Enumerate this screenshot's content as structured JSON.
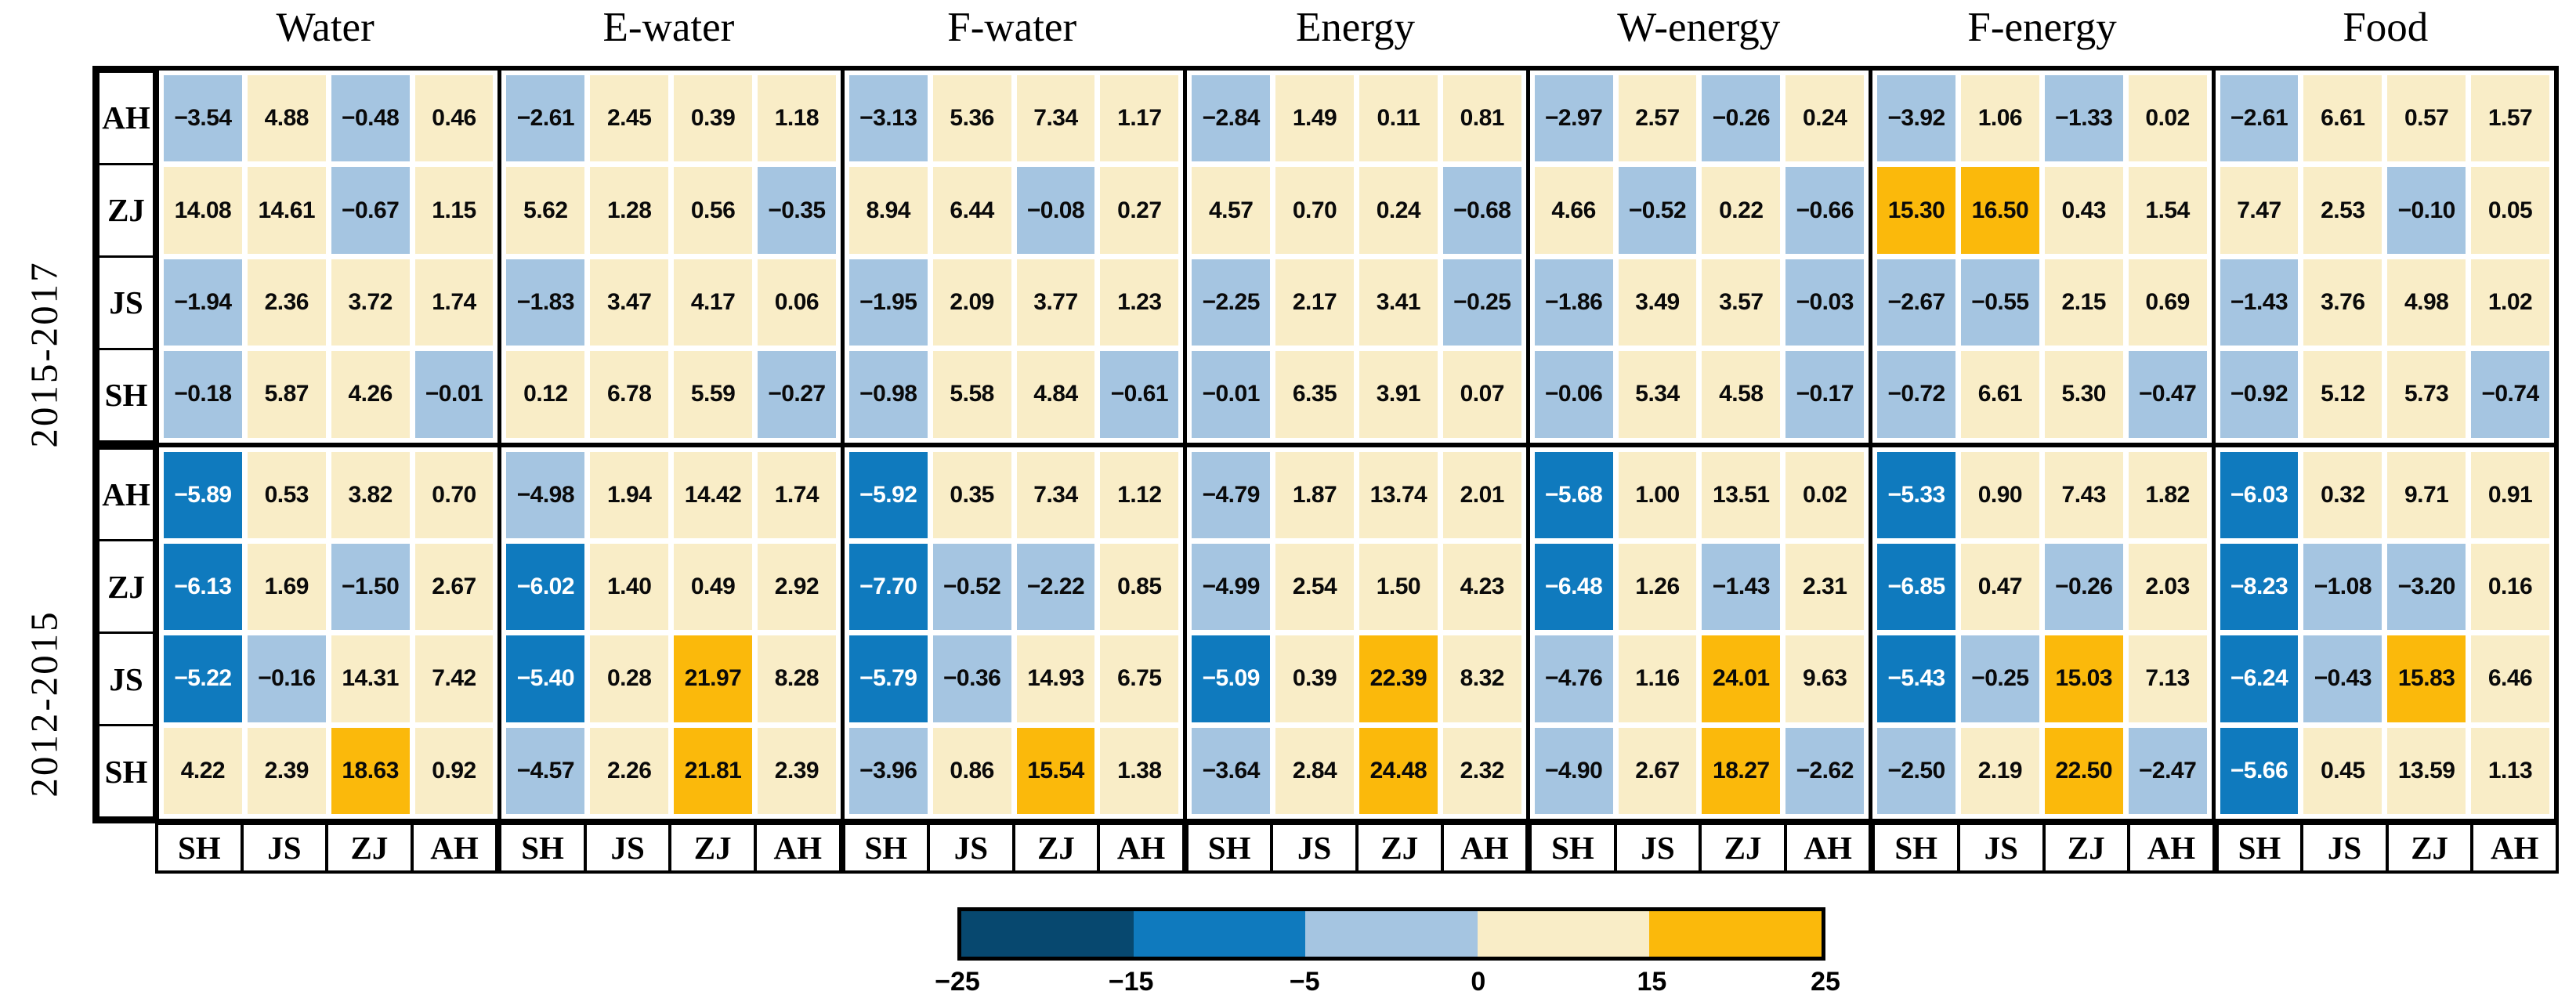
{
  "chart_data": {
    "type": "heatmap",
    "col_groups": [
      "Water",
      "E-water",
      "F-water",
      "Energy",
      "W-energy",
      "F-energy",
      "Food"
    ],
    "x_labels": [
      "SH",
      "JS",
      "ZJ",
      "AH"
    ],
    "row_blocks": [
      {
        "period": "2015-2017",
        "row_labels": [
          "AH",
          "ZJ",
          "JS",
          "SH"
        ],
        "values": {
          "Water": [
            [
              -3.54,
              4.88,
              -0.48,
              0.46
            ],
            [
              14.08,
              14.61,
              -0.67,
              1.15
            ],
            [
              -1.94,
              2.36,
              3.72,
              1.74
            ],
            [
              -0.18,
              5.87,
              4.26,
              -0.01
            ]
          ],
          "E-water": [
            [
              -2.61,
              2.45,
              0.39,
              1.18
            ],
            [
              5.62,
              1.28,
              0.56,
              -0.35
            ],
            [
              -1.83,
              3.47,
              4.17,
              0.06
            ],
            [
              0.12,
              6.78,
              5.59,
              -0.27
            ]
          ],
          "F-water": [
            [
              -3.13,
              5.36,
              7.34,
              1.17
            ],
            [
              8.94,
              6.44,
              -0.08,
              0.27
            ],
            [
              -1.95,
              2.09,
              3.77,
              1.23
            ],
            [
              -0.98,
              5.58,
              4.84,
              -0.61
            ]
          ],
          "Energy": [
            [
              -2.84,
              1.49,
              0.11,
              0.81
            ],
            [
              4.57,
              0.7,
              0.24,
              -0.68
            ],
            [
              -2.25,
              2.17,
              3.41,
              -0.25
            ],
            [
              -0.01,
              6.35,
              3.91,
              0.07
            ]
          ],
          "W-energy": [
            [
              -2.97,
              2.57,
              -0.26,
              0.24
            ],
            [
              4.66,
              -0.52,
              0.22,
              -0.66
            ],
            [
              -1.86,
              3.49,
              3.57,
              -0.03
            ],
            [
              -0.06,
              5.34,
              4.58,
              -0.17
            ]
          ],
          "F-energy": [
            [
              -3.92,
              1.06,
              -1.33,
              0.02
            ],
            [
              15.3,
              16.5,
              0.43,
              1.54
            ],
            [
              -2.67,
              -0.55,
              2.15,
              0.69
            ],
            [
              -0.72,
              6.61,
              5.3,
              -0.47
            ]
          ],
          "Food": [
            [
              -2.61,
              6.61,
              0.57,
              1.57
            ],
            [
              7.47,
              2.53,
              -0.1,
              0.05
            ],
            [
              -1.43,
              3.76,
              4.98,
              1.02
            ],
            [
              -0.92,
              5.12,
              5.73,
              -0.74
            ]
          ]
        }
      },
      {
        "period": "2012-2015",
        "row_labels": [
          "AH",
          "ZJ",
          "JS",
          "SH"
        ],
        "values": {
          "Water": [
            [
              -5.89,
              0.53,
              3.82,
              0.7
            ],
            [
              -6.13,
              1.69,
              -1.5,
              2.67
            ],
            [
              -5.22,
              -0.16,
              14.31,
              7.42
            ],
            [
              4.22,
              2.39,
              18.63,
              0.92
            ]
          ],
          "E-water": [
            [
              -4.98,
              1.94,
              14.42,
              1.74
            ],
            [
              -6.02,
              1.4,
              0.49,
              2.92
            ],
            [
              -5.4,
              0.28,
              21.97,
              8.28
            ],
            [
              -4.57,
              2.26,
              21.81,
              2.39
            ]
          ],
          "F-water": [
            [
              -5.92,
              0.35,
              7.34,
              1.12
            ],
            [
              -7.7,
              -0.52,
              -2.22,
              0.85
            ],
            [
              -5.79,
              -0.36,
              14.93,
              6.75
            ],
            [
              -3.96,
              0.86,
              15.54,
              1.38
            ]
          ],
          "Energy": [
            [
              -4.79,
              1.87,
              13.74,
              2.01
            ],
            [
              -4.99,
              2.54,
              1.5,
              4.23
            ],
            [
              -5.09,
              0.39,
              22.39,
              8.32
            ],
            [
              -3.64,
              2.84,
              24.48,
              2.32
            ]
          ],
          "W-energy": [
            [
              -5.68,
              1.0,
              13.51,
              0.02
            ],
            [
              -6.48,
              1.26,
              -1.43,
              2.31
            ],
            [
              -4.76,
              1.16,
              24.01,
              9.63
            ],
            [
              -4.9,
              2.67,
              18.27,
              -2.62
            ]
          ],
          "F-energy": [
            [
              -5.33,
              0.9,
              7.43,
              1.82
            ],
            [
              -6.85,
              0.47,
              -0.26,
              2.03
            ],
            [
              -5.43,
              -0.25,
              15.03,
              7.13
            ],
            [
              -2.5,
              2.19,
              22.5,
              -2.47
            ]
          ],
          "Food": [
            [
              -6.03,
              0.32,
              9.71,
              0.91
            ],
            [
              -8.23,
              -1.08,
              -3.2,
              0.16
            ],
            [
              -6.24,
              -0.43,
              15.83,
              6.46
            ],
            [
              -5.66,
              0.45,
              13.59,
              1.13
            ]
          ]
        }
      }
    ],
    "colorbar": {
      "tick_labels": [
        "-25",
        "-15",
        "-5",
        "0",
        "15",
        "25"
      ],
      "bin_edges": [
        -25,
        -15,
        -5,
        0,
        15,
        25
      ],
      "segment_colors": [
        "#07486f",
        "#0f7abe",
        "#a5c5e1",
        "#f9edc7",
        "#fbb90b"
      ],
      "value_text_dark": "#0a0a0a",
      "value_text_light": "#ffffff"
    },
    "layout": {
      "grid": false,
      "legend_position": "bottom",
      "vmin": -25,
      "vmax": 25
    }
  }
}
